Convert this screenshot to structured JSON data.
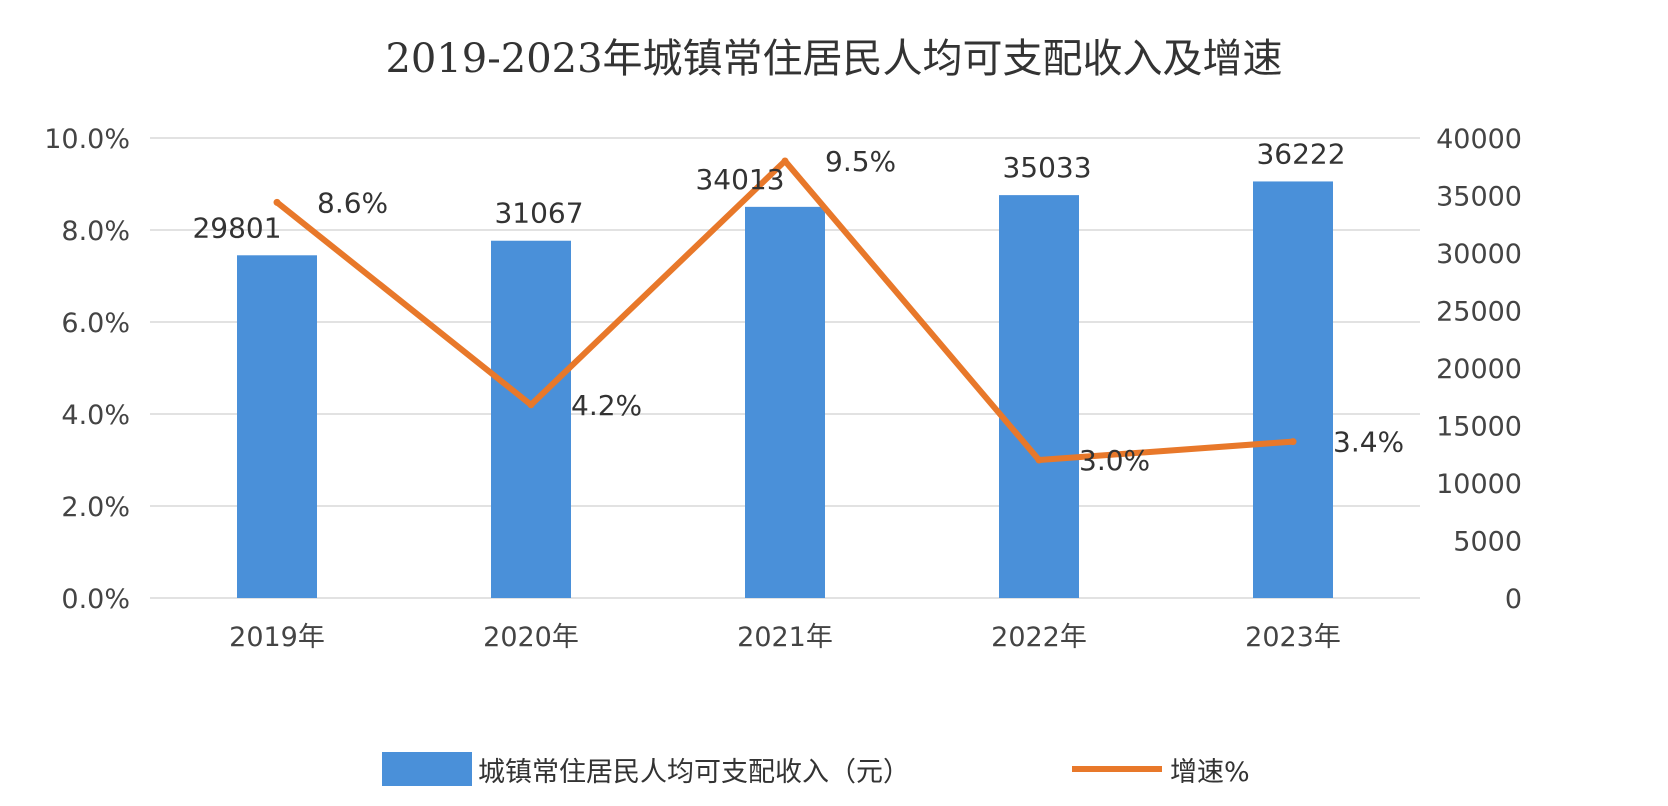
{
  "chart_data": {
    "type": "bar",
    "title": "2019-2023年城镇常住居民人均可支配收入及增速",
    "categories": [
      "2019年",
      "2020年",
      "2021年",
      "2022年",
      "2023年"
    ],
    "series": [
      {
        "name": "城镇常住居民人均可支配收入（元）",
        "type": "bar",
        "axis": "right",
        "values": [
          29801,
          31067,
          34013,
          35033,
          36222
        ],
        "labels": [
          "29801",
          "31067",
          "34013",
          "35033",
          "36222"
        ],
        "color": "#4a90d9"
      },
      {
        "name": "增速%",
        "type": "line",
        "axis": "left",
        "values": [
          8.6,
          4.2,
          9.5,
          3.0,
          3.4
        ],
        "labels": [
          "8.6%",
          "4.2%",
          "9.5%",
          "3.0%",
          "3.4%"
        ],
        "color": "#e8782a"
      }
    ],
    "left_axis": {
      "ylim": [
        0,
        10
      ],
      "ticks": [
        "0.0%",
        "2.0%",
        "4.0%",
        "6.0%",
        "8.0%",
        "10.0%"
      ]
    },
    "right_axis": {
      "ylim": [
        0,
        40000
      ],
      "ticks": [
        "0",
        "5000",
        "10000",
        "15000",
        "20000",
        "25000",
        "30000",
        "35000",
        "40000"
      ]
    },
    "grid": true,
    "legend": "bottom"
  }
}
